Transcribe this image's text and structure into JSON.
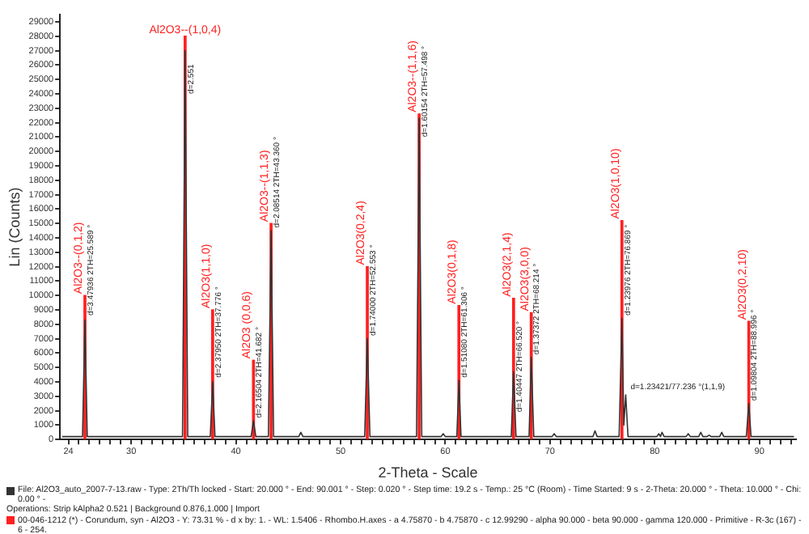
{
  "chart_data": {
    "type": "line",
    "xlabel": "2-Theta - Scale",
    "ylabel": "Lin (Counts)",
    "xlim": [
      23.2,
      93.5
    ],
    "ylim": [
      0,
      29500
    ],
    "xticks": [
      24,
      {
        "value": 25,
        "label": null
      },
      {
        "value": 26,
        "label": null
      },
      {
        "value": 27,
        "label": null
      },
      {
        "value": 28,
        "label": null
      },
      {
        "value": 29,
        "label": null
      },
      30,
      {
        "value": 31,
        "label": null
      },
      {
        "value": 32,
        "label": null
      },
      {
        "value": 33,
        "label": null
      },
      {
        "value": 34,
        "label": null
      },
      {
        "value": 35,
        "label": null
      },
      {
        "value": 36,
        "label": null
      },
      {
        "value": 37,
        "label": null
      },
      {
        "value": 38,
        "label": null
      },
      {
        "value": 39,
        "label": null
      },
      40,
      {
        "value": 41,
        "label": null
      },
      {
        "value": 42,
        "label": null
      },
      {
        "value": 43,
        "label": null
      },
      {
        "value": 44,
        "label": null
      },
      {
        "value": 45,
        "label": null
      },
      {
        "value": 46,
        "label": null
      },
      {
        "value": 47,
        "label": null
      },
      {
        "value": 48,
        "label": null
      },
      {
        "value": 49,
        "label": null
      },
      50,
      {
        "value": 51,
        "label": null
      },
      {
        "value": 52,
        "label": null
      },
      {
        "value": 53,
        "label": null
      },
      {
        "value": 54,
        "label": null
      },
      {
        "value": 55,
        "label": null
      },
      {
        "value": 56,
        "label": null
      },
      {
        "value": 57,
        "label": null
      },
      {
        "value": 58,
        "label": null
      },
      {
        "value": 59,
        "label": null
      },
      60,
      {
        "value": 61,
        "label": null
      },
      {
        "value": 62,
        "label": null
      },
      {
        "value": 63,
        "label": null
      },
      {
        "value": 64,
        "label": null
      },
      {
        "value": 65,
        "label": null
      },
      {
        "value": 66,
        "label": null
      },
      {
        "value": 67,
        "label": null
      },
      {
        "value": 68,
        "label": null
      },
      {
        "value": 69,
        "label": null
      },
      70,
      {
        "value": 71,
        "label": null
      },
      {
        "value": 72,
        "label": null
      },
      {
        "value": 73,
        "label": null
      },
      {
        "value": 74,
        "label": null
      },
      {
        "value": 75,
        "label": null
      },
      {
        "value": 76,
        "label": null
      },
      {
        "value": 77,
        "label": null
      },
      {
        "value": 78,
        "label": null
      },
      {
        "value": 79,
        "label": null
      },
      80,
      {
        "value": 81,
        "label": null
      },
      {
        "value": 82,
        "label": null
      },
      {
        "value": 83,
        "label": null
      },
      {
        "value": 84,
        "label": null
      },
      {
        "value": 85,
        "label": null
      },
      {
        "value": 86,
        "label": null
      },
      {
        "value": 87,
        "label": null
      },
      {
        "value": 88,
        "label": null
      },
      {
        "value": 89,
        "label": null
      },
      90,
      {
        "value": 91,
        "label": null
      },
      {
        "value": 92,
        "label": null
      },
      {
        "value": 93,
        "label": null
      }
    ],
    "yticks": [
      0,
      1000,
      2000,
      3000,
      4000,
      5000,
      6000,
      7000,
      8000,
      9000,
      10000,
      11000,
      12000,
      13000,
      14000,
      15000,
      16000,
      17000,
      18000,
      19000,
      20000,
      21000,
      22000,
      23000,
      24000,
      25000,
      26000,
      27000,
      28000,
      29000
    ],
    "legend": "bottom",
    "marker": "none",
    "series": [
      {
        "name": "File: Al2O3_auto_2007-7-13.raw - Type: 2Th/Th locked - Start: 20.000 ° - End: 90.001 ° - Step: 0.020 ° - Step time: 19.2 s - Temp.: 25 °C (Room) - Time Started: 9 s - 2-Theta: 20.000 ° - Theta: 10.000 ° - Chi: 0.00 ° -",
        "color": "#333333",
        "x": [
          23.4,
          25.35,
          25.58,
          25.8,
          34.9,
          35.15,
          35.4,
          37.55,
          37.78,
          38.0,
          41.45,
          41.68,
          41.9,
          43.1,
          43.36,
          43.6,
          46.0,
          46.2,
          46.4,
          52.3,
          52.55,
          52.8,
          57.25,
          57.5,
          57.75,
          59.6,
          59.8,
          60.0,
          61.1,
          61.3,
          61.5,
          66.3,
          66.52,
          66.75,
          68.0,
          68.21,
          68.45,
          70.2,
          70.4,
          70.6,
          74.1,
          74.3,
          74.5,
          76.6,
          76.87,
          77.05,
          77.23,
          77.45,
          80.2,
          80.4,
          80.55,
          80.7,
          80.9,
          83.0,
          83.2,
          83.4,
          84.2,
          84.4,
          84.6,
          85.0,
          85.2,
          85.4,
          86.2,
          86.4,
          86.6,
          88.75,
          88.99,
          89.2,
          93.3
        ],
        "values": [
          200,
          200,
          8300,
          200,
          200,
          27000,
          200,
          200,
          4000,
          200,
          200,
          1300,
          200,
          200,
          14500,
          200,
          200,
          500,
          200,
          200,
          7000,
          200,
          200,
          22300,
          200,
          200,
          400,
          200,
          200,
          4100,
          200,
          200,
          4700,
          200,
          200,
          5700,
          200,
          200,
          400,
          200,
          200,
          600,
          200,
          200,
          8400,
          1000,
          3100,
          200,
          200,
          400,
          200,
          500,
          200,
          200,
          400,
          200,
          200,
          500,
          200,
          200,
          300,
          200,
          200,
          500,
          200,
          200,
          2500,
          200,
          200
        ]
      },
      {
        "name": "00-046-1212 (*) - Corundum, syn - Al2O3 - Y: 73.31 % - d x by: 1. - WL: 1.5406 - Rhombo.H.axes - a 4.75870 - b 4.75870 - c 12.99290 - alpha 90.000 - beta 90.000 - gamma 120.000 - Primitive - R-3c (167) - 6 - 254.",
        "type": "bar",
        "color": "#ff2020",
        "x": [
          25.58,
          35.15,
          37.78,
          41.68,
          43.36,
          52.55,
          57.5,
          61.3,
          66.52,
          68.21,
          76.87,
          88.99
        ],
        "values": [
          10000,
          28000,
          9000,
          5500,
          15000,
          12000,
          22600,
          9300,
          9800,
          8800,
          15200,
          8200
        ],
        "value_labels": [
          "Al2O3--(0,1,2)",
          "Al2O3--(1,0,4)",
          "Al2O3(1,1,0)",
          "Al2O3 (0,0,6)",
          "Al2O3--(1,1,3)",
          "Al2O3(0,2,4)",
          "Al2O3--(1,1,6)",
          "Al2O3(0,1,8)",
          "Al2O3(2,1,4)",
          "Al2O3(3,0,0)",
          "Al2O3(1,0,10)",
          "Al2O3(0,2,10)"
        ]
      }
    ],
    "annotations": [
      "Operations: Strip kAlpha2 0.521 | Background 0.876,1.000 | Import",
      {
        "text": "d=3.47936 2TH=25.589 °",
        "x": 25.58,
        "y": 8600
      },
      {
        "text": "d=2.551",
        "x": 35.15,
        "y": 24000
      },
      {
        "text": "d=2.37950 2TH=37.776 °",
        "x": 37.78,
        "y": 4300
      },
      {
        "text": "d=2.16504 2TH=41.682 °",
        "x": 41.68,
        "y": 1500
      },
      {
        "text": "d=2.08514 2TH=43.360 °",
        "x": 43.36,
        "y": 14700
      },
      {
        "text": "d=1.74000 2TH=52.553 °",
        "x": 52.55,
        "y": 7200
      },
      {
        "text": "d=1.60154 2TH=57.498 °",
        "x": 57.5,
        "y": 21000
      },
      {
        "text": "d=1.51080 2TH=61.306 °",
        "x": 61.3,
        "y": 4300
      },
      {
        "text": "d=1.40447 2TH=66.520 °",
        "x": 66.52,
        "y": 1900
      },
      {
        "text": "d=1.37372 2TH=68.214 °",
        "x": 68.21,
        "y": 5900
      },
      {
        "text": "d=1.23976 2TH=76.869 °",
        "x": 76.87,
        "y": 8600
      },
      {
        "text": "d=1.23421/77.236 °(1,1,9)",
        "x": 77.23,
        "y": 3300
      },
      {
        "text": "d=1.09804 2TH=88.996 °",
        "x": 88.99,
        "y": 2700
      }
    ]
  }
}
